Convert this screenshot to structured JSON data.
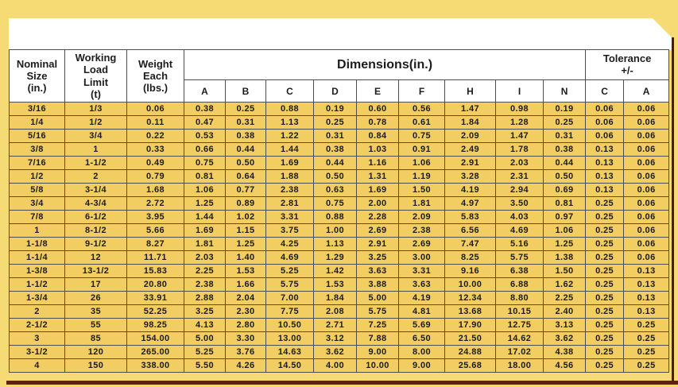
{
  "palette": {
    "page_background": "#f6da73",
    "panel_background": "#ffffff",
    "cell_background": "#f1cd62",
    "grid_line": "#4d4d4d",
    "accent_rule": "#5e2014",
    "text": "#1c1c1c"
  },
  "table": {
    "headers": {
      "nominal_size": "Nominal\nSize\n(in.)",
      "working_load_limit": "Working\nLoad\nLimit\n(t)",
      "weight_each": "Weight\nEach\n(lbs.)",
      "dimensions": "Dimensions(in.)",
      "tolerance": "Tolerance\n+/-",
      "dimension_columns": [
        "A",
        "B",
        "C",
        "D",
        "E",
        "F",
        "H",
        "I",
        "N"
      ],
      "tolerance_columns": [
        "C",
        "A"
      ]
    },
    "rows": [
      {
        "size": "3/16",
        "wll": "1/3",
        "weight": "0.06",
        "dims": [
          "0.38",
          "0.25",
          "0.88",
          "0.19",
          "0.60",
          "0.56",
          "1.47",
          "0.98",
          "0.19"
        ],
        "tolerance": [
          "0.06",
          "0.06"
        ]
      },
      {
        "size": "1/4",
        "wll": "1/2",
        "weight": "0.11",
        "dims": [
          "0.47",
          "0.31",
          "1.13",
          "0.25",
          "0.78",
          "0.61",
          "1.84",
          "1.28",
          "0.25"
        ],
        "tolerance": [
          "0.06",
          "0.06"
        ]
      },
      {
        "size": "5/16",
        "wll": "3/4",
        "weight": "0.22",
        "dims": [
          "0.53",
          "0.38",
          "1.22",
          "0.31",
          "0.84",
          "0.75",
          "2.09",
          "1.47",
          "0.31"
        ],
        "tolerance": [
          "0.06",
          "0.06"
        ]
      },
      {
        "size": "3/8",
        "wll": "1",
        "weight": "0.33",
        "dims": [
          "0.66",
          "0.44",
          "1.44",
          "0.38",
          "1.03",
          "0.91",
          "2.49",
          "1.78",
          "0.38"
        ],
        "tolerance": [
          "0.13",
          "0.06"
        ]
      },
      {
        "size": "7/16",
        "wll": "1-1/2",
        "weight": "0.49",
        "dims": [
          "0.75",
          "0.50",
          "1.69",
          "0.44",
          "1.16",
          "1.06",
          "2.91",
          "2.03",
          "0.44"
        ],
        "tolerance": [
          "0.13",
          "0.06"
        ]
      },
      {
        "size": "1/2",
        "wll": "2",
        "weight": "0.79",
        "dims": [
          "0.81",
          "0.64",
          "1.88",
          "0.50",
          "1.31",
          "1.19",
          "3.28",
          "2.31",
          "0.50"
        ],
        "tolerance": [
          "0.13",
          "0.06"
        ]
      },
      {
        "size": "5/8",
        "wll": "3-1/4",
        "weight": "1.68",
        "dims": [
          "1.06",
          "0.77",
          "2.38",
          "0.63",
          "1.69",
          "1.50",
          "4.19",
          "2.94",
          "0.69"
        ],
        "tolerance": [
          "0.13",
          "0.06"
        ]
      },
      {
        "size": "3/4",
        "wll": "4-3/4",
        "weight": "2.72",
        "dims": [
          "1.25",
          "0.89",
          "2.81",
          "0.75",
          "2.00",
          "1.81",
          "4.97",
          "3.50",
          "0.81"
        ],
        "tolerance": [
          "0.25",
          "0.06"
        ]
      },
      {
        "size": "7/8",
        "wll": "6-1/2",
        "weight": "3.95",
        "dims": [
          "1.44",
          "1.02",
          "3.31",
          "0.88",
          "2.28",
          "2.09",
          "5.83",
          "4.03",
          "0.97"
        ],
        "tolerance": [
          "0.25",
          "0.06"
        ]
      },
      {
        "size": "1",
        "wll": "8-1/2",
        "weight": "5.66",
        "dims": [
          "1.69",
          "1.15",
          "3.75",
          "1.00",
          "2.69",
          "2.38",
          "6.56",
          "4.69",
          "1.06"
        ],
        "tolerance": [
          "0.25",
          "0.06"
        ]
      },
      {
        "size": "1-1/8",
        "wll": "9-1/2",
        "weight": "8.27",
        "dims": [
          "1.81",
          "1.25",
          "4.25",
          "1.13",
          "2.91",
          "2.69",
          "7.47",
          "5.16",
          "1.25"
        ],
        "tolerance": [
          "0.25",
          "0.06"
        ]
      },
      {
        "size": "1-1/4",
        "wll": "12",
        "weight": "11.71",
        "dims": [
          "2.03",
          "1.40",
          "4.69",
          "1.29",
          "3.25",
          "3.00",
          "8.25",
          "5.75",
          "1.38"
        ],
        "tolerance": [
          "0.25",
          "0.06"
        ]
      },
      {
        "size": "1-3/8",
        "wll": "13-1/2",
        "weight": "15.83",
        "dims": [
          "2.25",
          "1.53",
          "5.25",
          "1.42",
          "3.63",
          "3.31",
          "9.16",
          "6.38",
          "1.50"
        ],
        "tolerance": [
          "0.25",
          "0.13"
        ]
      },
      {
        "size": "1-1/2",
        "wll": "17",
        "weight": "20.80",
        "dims": [
          "2.38",
          "1.66",
          "5.75",
          "1.53",
          "3.88",
          "3.63",
          "10.00",
          "6.88",
          "1.62"
        ],
        "tolerance": [
          "0.25",
          "0.13"
        ]
      },
      {
        "size": "1-3/4",
        "wll": "26",
        "weight": "33.91",
        "dims": [
          "2.88",
          "2.04",
          "7.00",
          "1.84",
          "5.00",
          "4.19",
          "12.34",
          "8.80",
          "2.25"
        ],
        "tolerance": [
          "0.25",
          "0.13"
        ]
      },
      {
        "size": "2",
        "wll": "35",
        "weight": "52.25",
        "dims": [
          "3.25",
          "2.30",
          "7.75",
          "2.08",
          "5.75",
          "4.81",
          "13.68",
          "10.15",
          "2.40"
        ],
        "tolerance": [
          "0.25",
          "0.13"
        ]
      },
      {
        "size": "2-1/2",
        "wll": "55",
        "weight": "98.25",
        "dims": [
          "4.13",
          "2.80",
          "10.50",
          "2.71",
          "7.25",
          "5.69",
          "17.90",
          "12.75",
          "3.13"
        ],
        "tolerance": [
          "0.25",
          "0.25"
        ]
      },
      {
        "size": "3",
        "wll": "85",
        "weight": "154.00",
        "dims": [
          "5.00",
          "3.30",
          "13.00",
          "3.12",
          "7.88",
          "6.50",
          "21.50",
          "14.62",
          "3.62"
        ],
        "tolerance": [
          "0.25",
          "0.25"
        ]
      },
      {
        "size": "3-1/2",
        "wll": "120",
        "weight": "265.00",
        "dims": [
          "5.25",
          "3.76",
          "14.63",
          "3.62",
          "9.00",
          "8.00",
          "24.88",
          "17.02",
          "4.38"
        ],
        "tolerance": [
          "0.25",
          "0.25"
        ]
      },
      {
        "size": "4",
        "wll": "150",
        "weight": "338.00",
        "dims": [
          "5.50",
          "4.26",
          "14.50",
          "4.00",
          "10.00",
          "9.00",
          "25.68",
          "18.00",
          "4.56"
        ],
        "tolerance": [
          "0.25",
          "0.25"
        ]
      }
    ]
  }
}
